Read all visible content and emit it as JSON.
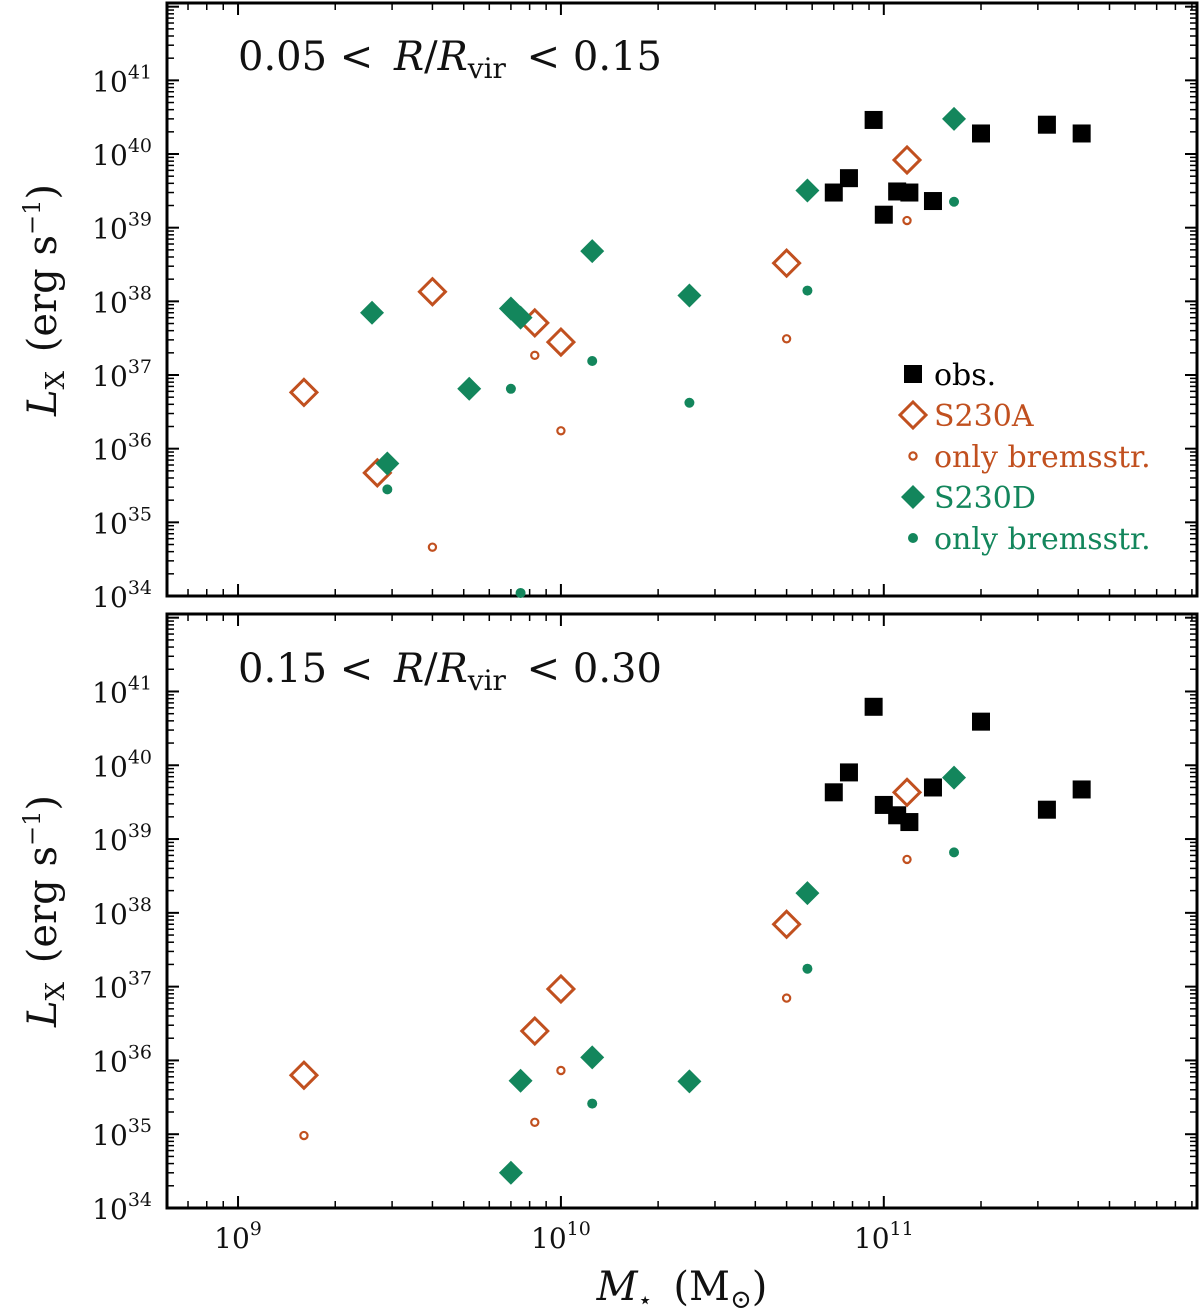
{
  "colors": {
    "obs": "#000000",
    "S230A": "#c1501f",
    "S230D": "#13865c",
    "axis": "#000000"
  },
  "axes": {
    "xlabel_symbol": "M",
    "xlabel_sub": "⋆",
    "xlabel_unit_open": "(M",
    "xlabel_unit_sub": "⊙",
    "xlabel_unit_close": ")",
    "ylabel_symbol": "L",
    "ylabel_sub": "X",
    "ylabel_unit": "(erg s",
    "ylabel_unit_exp": "−1",
    "ylabel_unit_close": ")",
    "xscale": "log",
    "yscale": "log",
    "xlim_log10": [
      8.78,
      11.97
    ],
    "ylim_log10": [
      34.0,
      42.05
    ],
    "x_tick_base": "10",
    "x_tick_exponents": [
      "9",
      "10",
      "11"
    ],
    "y_tick_base": "10",
    "y_tick_exponents": [
      "34",
      "35",
      "36",
      "37",
      "38",
      "39",
      "40",
      "41"
    ]
  },
  "legend": {
    "placement": "top-right of top panel",
    "entries": [
      {
        "label": "obs.",
        "series": "obs",
        "marker": "square-filled"
      },
      {
        "label": "S230A",
        "series": "S230A",
        "marker": "diamond-open"
      },
      {
        "label": "only bremsstr.",
        "series": "S230A_brems",
        "marker": "circle-open-small"
      },
      {
        "label": "S230D",
        "series": "S230D",
        "marker": "diamond-filled"
      },
      {
        "label": "only bremsstr.",
        "series": "S230D_brems",
        "marker": "circle-filled-small"
      }
    ]
  },
  "chart_data": [
    {
      "type": "scatter",
      "panel": "top",
      "title_left": "0.05 <",
      "title_var": "R",
      "title_slash": "/",
      "title_var2": "R",
      "title_sub": "vir",
      "title_right": "< 0.15",
      "xscale": "log",
      "yscale": "log",
      "series": [
        {
          "name": "obs",
          "points": [
            [
              93000000000.0,
              2.9e+40
            ],
            [
              70000000000.0,
              3e+39
            ],
            [
              78000000000.0,
              4.7e+39
            ],
            [
              100000000000.0,
              1.5e+39
            ],
            [
              110000000000.0,
              3.1e+39
            ],
            [
              120000000000.0,
              3e+39
            ],
            [
              142000000000.0,
              2.3e+39
            ],
            [
              200000000000.0,
              1.9e+40
            ],
            [
              320000000000.0,
              2.5e+40
            ],
            [
              410000000000.0,
              1.9e+40
            ]
          ]
        },
        {
          "name": "S230A",
          "points": [
            [
              1600000000.0,
              5.8e+36
            ],
            [
              2700000000.0,
              4.7e+35
            ],
            [
              4000000000.0,
              1.35e+38
            ],
            [
              8300000000.0,
              5.1e+37
            ],
            [
              10000000000.0,
              2.8e+37
            ],
            [
              50000000000.0,
              3.3e+38
            ],
            [
              118000000000.0,
              8.3e+39
            ]
          ]
        },
        {
          "name": "S230A_brems",
          "points": [
            [
              4000000000.0,
              4.6e+34
            ],
            [
              8300000000.0,
              1.85e+37
            ],
            [
              10000000000.0,
              1.75e+36
            ],
            [
              50000000000.0,
              3.1e+37
            ],
            [
              118000000000.0,
              1.25e+39
            ]
          ]
        },
        {
          "name": "S230D",
          "points": [
            [
              2600000000.0,
              7e+37
            ],
            [
              2900000000.0,
              6.3e+35
            ],
            [
              5200000000.0,
              6.5e+36
            ],
            [
              7000000000.0,
              8e+37
            ],
            [
              7500000000.0,
              6e+37
            ],
            [
              12500000000.0,
              4.8e+38
            ],
            [
              25000000000.0,
              1.2e+38
            ],
            [
              58000000000.0,
              3.2e+39
            ],
            [
              165000000000.0,
              3e+40
            ]
          ]
        },
        {
          "name": "S230D_brems",
          "points": [
            [
              2900000000.0,
              2.8e+35
            ],
            [
              7000000000.0,
              6.5e+36
            ],
            [
              7500000000.0,
              1.1e+34
            ],
            [
              12500000000.0,
              1.55e+37
            ],
            [
              25000000000.0,
              4.2e+36
            ],
            [
              58000000000.0,
              1.4e+38
            ],
            [
              165000000000.0,
              2.25e+39
            ]
          ]
        }
      ]
    },
    {
      "type": "scatter",
      "panel": "bottom",
      "title_left": "0.15 <",
      "title_var": "R",
      "title_slash": "/",
      "title_var2": "R",
      "title_sub": "vir",
      "title_right": "< 0.30",
      "xscale": "log",
      "yscale": "log",
      "series": [
        {
          "name": "obs",
          "points": [
            [
              93000000000.0,
              6.2e+40
            ],
            [
              70000000000.0,
              4.3e+39
            ],
            [
              78000000000.0,
              8e+39
            ],
            [
              100000000000.0,
              2.9e+39
            ],
            [
              110000000000.0,
              2.1e+39
            ],
            [
              120000000000.0,
              1.7e+39
            ],
            [
              142000000000.0,
              5e+39
            ],
            [
              200000000000.0,
              3.9e+40
            ],
            [
              320000000000.0,
              2.5e+39
            ],
            [
              410000000000.0,
              4.7e+39
            ]
          ]
        },
        {
          "name": "S230A",
          "points": [
            [
              1600000000.0,
              6.3e+35
            ],
            [
              8300000000.0,
              2.5e+36
            ],
            [
              10000000000.0,
              9.3e+36
            ],
            [
              50000000000.0,
              7e+37
            ],
            [
              118000000000.0,
              4.3e+39
            ]
          ]
        },
        {
          "name": "S230A_brems",
          "points": [
            [
              1600000000.0,
              9.6e+34
            ],
            [
              8300000000.0,
              1.45e+35
            ],
            [
              10000000000.0,
              7.3e+35
            ],
            [
              50000000000.0,
              7e+36
            ],
            [
              118000000000.0,
              5.3e+38
            ]
          ]
        },
        {
          "name": "S230D",
          "points": [
            [
              7000000000.0,
              3e+34
            ],
            [
              7500000000.0,
              5.3e+35
            ],
            [
              12500000000.0,
              1.1e+36
            ],
            [
              25000000000.0,
              5.2e+35
            ],
            [
              58000000000.0,
              1.85e+38
            ],
            [
              165000000000.0,
              6.8e+39
            ]
          ]
        },
        {
          "name": "S230D_brems",
          "points": [
            [
              12500000000.0,
              2.6e+35
            ],
            [
              58000000000.0,
              1.75e+37
            ],
            [
              165000000000.0,
              6.6e+38
            ]
          ]
        }
      ]
    }
  ]
}
